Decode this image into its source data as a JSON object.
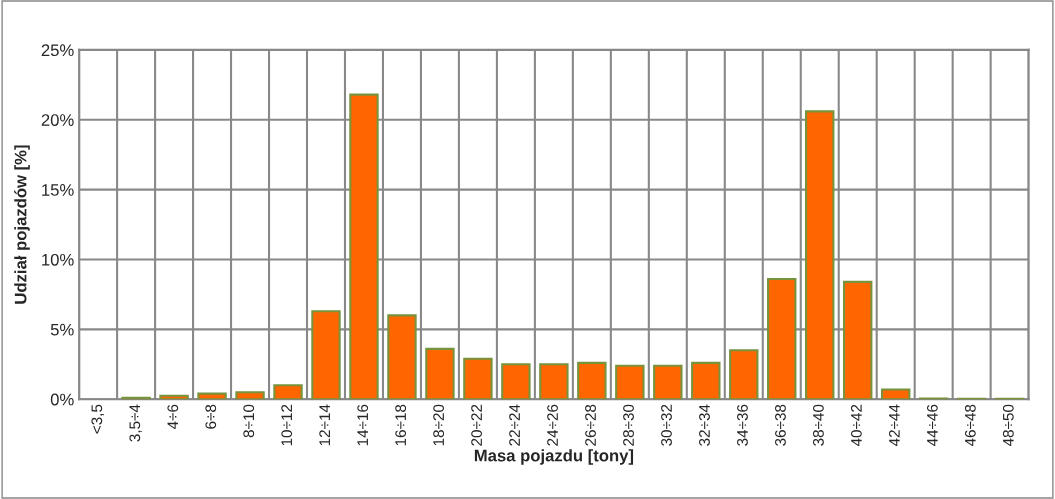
{
  "chart_data": {
    "type": "bar",
    "xlabel": "Masa pojazdu [tony]",
    "ylabel": "Udział pojazdów [%]",
    "categories": [
      "<3,5",
      "3,5÷4",
      "4÷6",
      "6÷8",
      "8÷10",
      "10÷12",
      "12÷14",
      "14÷16",
      "16÷18",
      "18÷20",
      "20÷22",
      "22÷24",
      "24÷26",
      "26÷28",
      "28÷30",
      "30÷32",
      "32÷34",
      "34÷36",
      "36÷38",
      "38÷40",
      "40÷42",
      "42÷44",
      "44÷46",
      "46÷48",
      "48÷50"
    ],
    "series": [
      {
        "color": "#ff6600",
        "values": [
          null,
          0.1,
          0.25,
          0.4,
          0.5,
          1.0,
          6.3,
          21.8,
          6.0,
          3.6,
          2.9,
          2.5,
          2.5,
          2.6,
          2.4,
          2.4,
          2.6,
          3.5,
          8.6,
          20.6,
          8.4,
          0.7,
          0.05,
          0.03,
          0.03
        ]
      }
    ],
    "ylim": [
      0,
      25
    ],
    "yticks": [
      {
        "value": 0,
        "label": "0%"
      },
      {
        "value": 5,
        "label": "5%"
      },
      {
        "value": 10,
        "label": "10%"
      },
      {
        "value": 15,
        "label": "15%"
      },
      {
        "value": 20,
        "label": "20%"
      },
      {
        "value": 25,
        "label": "25%"
      }
    ],
    "grid": true,
    "legend": false
  }
}
